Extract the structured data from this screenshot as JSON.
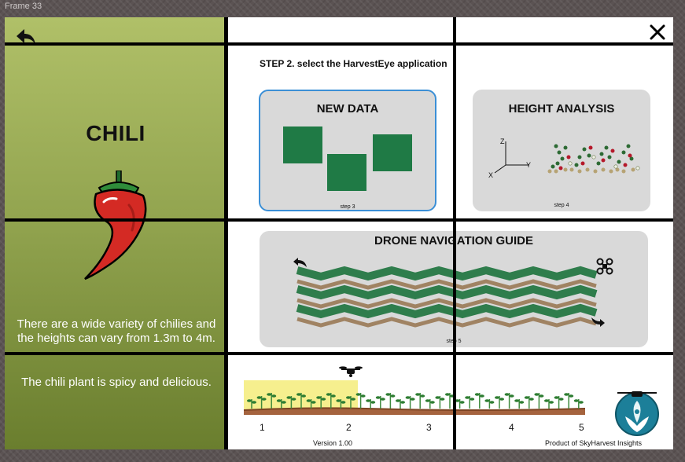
{
  "frame_label": "Frame 33",
  "sidebar": {
    "crop_name": "CHILI",
    "description_1": "There are a wide variety of chilies and the heights can vary from 1.3m to 4m.",
    "description_2": "The chili plant is spicy and delicious."
  },
  "main": {
    "step_title": "STEP 2. select the HarvestEye application",
    "cards": [
      {
        "title": "NEW DATA",
        "step": "step 3",
        "selected": true
      },
      {
        "title": "HEIGHT ANALYSIS",
        "step": "step 4",
        "axes": {
          "z": "Z",
          "y": "Y",
          "x": "X"
        }
      },
      {
        "title": "DRONE NAVIGATION GUIDE",
        "step": "step 5"
      }
    ]
  },
  "progress": {
    "stages": [
      "1",
      "2",
      "3",
      "4",
      "5"
    ],
    "current_stage": 2
  },
  "footer": {
    "version": "Version 1.00",
    "product": "Product of SkyHarvest Insights"
  },
  "colors": {
    "accent_blue": "#3b8fd6",
    "tile_green": "#1f7a45",
    "sidebar_top": "#b0c068",
    "sidebar_bottom": "#6a7e2e",
    "highlight": "#f5ec7a"
  },
  "icons": [
    "back-arrow-icon",
    "close-icon",
    "chili-pepper-icon",
    "drone-icon",
    "rotate-left-icon",
    "rotate-right-icon",
    "skyharvest-logo"
  ]
}
